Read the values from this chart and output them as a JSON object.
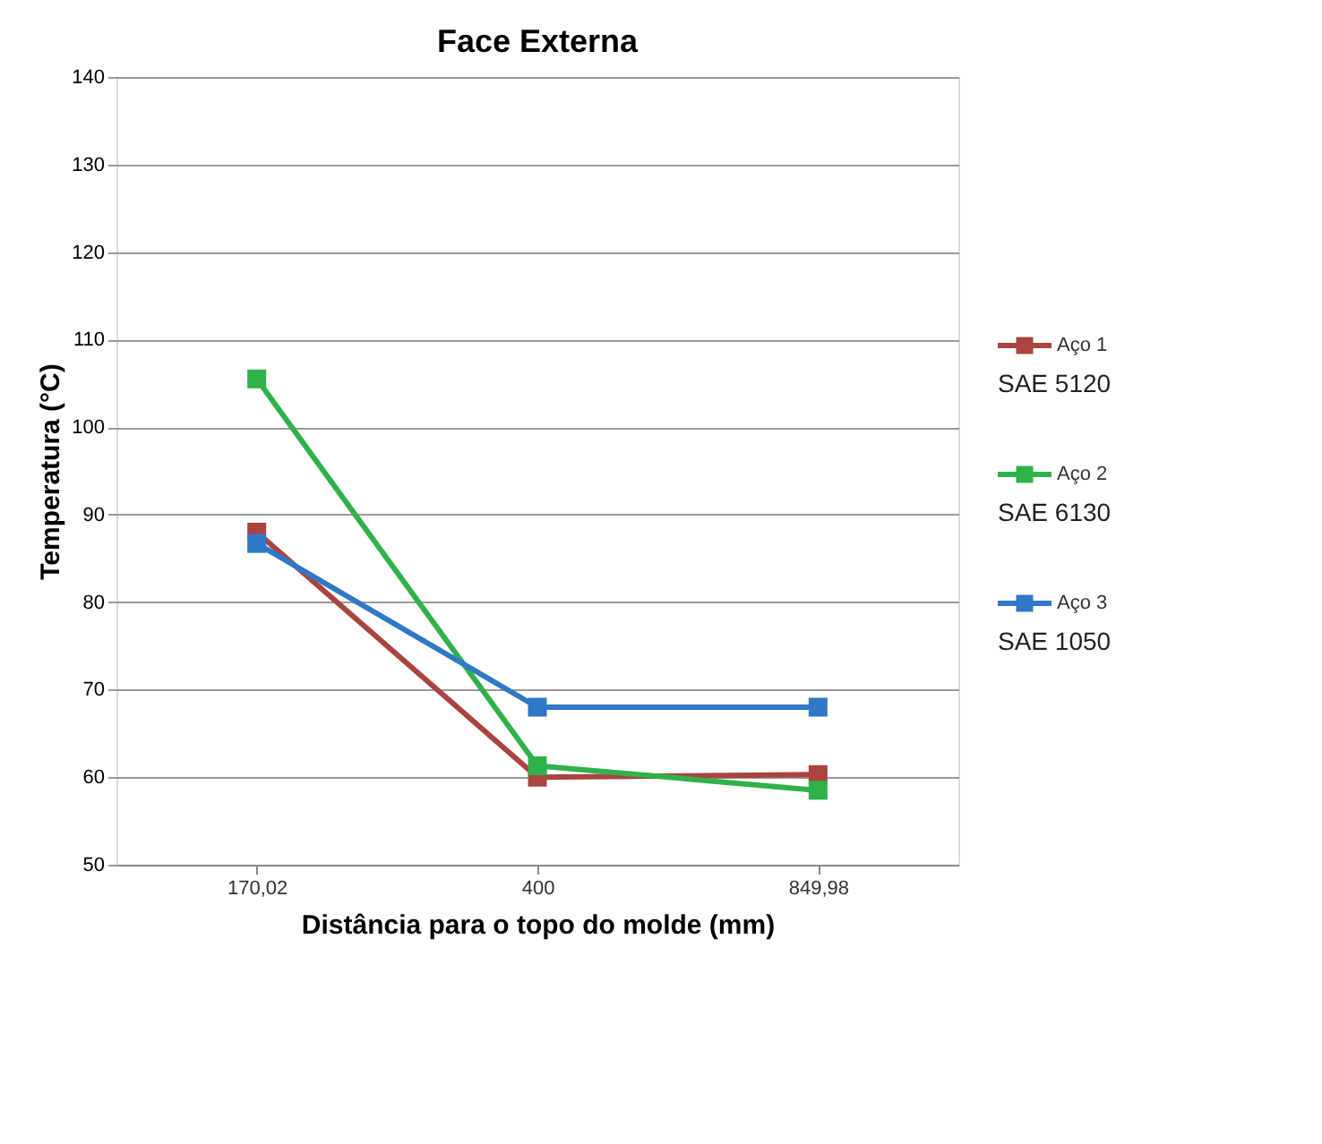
{
  "chart_data": {
    "type": "line",
    "title": "Face Externa",
    "xlabel": "Distância para o topo do molde (mm)",
    "ylabel": "Temperatura (°C)",
    "categories": [
      "170,02",
      "400",
      "849,98"
    ],
    "series": [
      {
        "name": "Aço 1",
        "color": "#a9443f",
        "values": [
          88,
          60,
          60.3
        ]
      },
      {
        "name": "Aço 2",
        "color": "#2fb24a",
        "values": [
          105.5,
          61.3,
          58.5
        ]
      },
      {
        "name": "Aço 3",
        "color": "#2f79c6",
        "values": [
          86.7,
          68,
          68
        ]
      }
    ],
    "annotations": [
      "SAE 5120",
      "SAE 6130",
      "SAE 1050"
    ],
    "ylim": [
      50,
      140
    ],
    "yticks": [
      50,
      60,
      70,
      80,
      90,
      100,
      110,
      120,
      130,
      140
    ],
    "grid": "y",
    "legend": "right",
    "marker": "square",
    "line_style": "solid"
  }
}
